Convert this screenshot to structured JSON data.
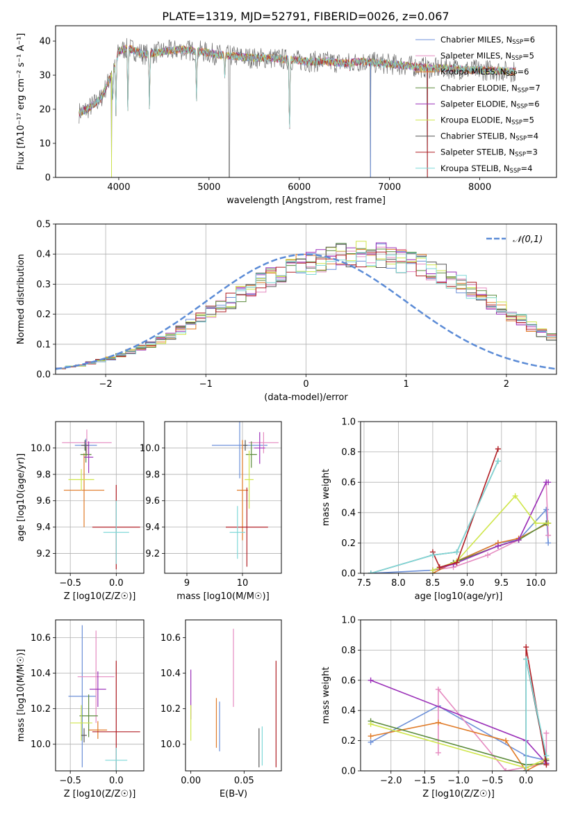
{
  "figure": {
    "title": "PLATE=1319, MJD=52791, FIBERID=0026, z=0.067"
  },
  "colors": {
    "chabrier_miles": "#6b8fd8",
    "salpeter_miles": "#e58ac0",
    "kroupa_miles": "#e07a26",
    "chabrier_elodie": "#5a8a3a",
    "salpeter_elodie": "#9a2fb8",
    "kroupa_elodie": "#cfe64a",
    "chabrier_stelib": "#555555",
    "salpeter_stelib": "#b01e24",
    "kroupa_stelib": "#7fd8d8",
    "gaussian": "#5b8bd6",
    "grid": "#b0b0b0"
  },
  "chart_data": [
    {
      "type": "line",
      "title": "PLATE=1319, MJD=52791, FIBERID=0026, z=0.067",
      "xlabel": "wavelength [Angstrom, rest frame]",
      "ylabel": "Flux [fλ10⁻¹⁷ erg cm⁻² s⁻¹ A⁻¹]",
      "xlim": [
        3300,
        8850
      ],
      "ylim": [
        0,
        44.5
      ],
      "xticks": [
        "4000",
        "5000",
        "6000",
        "7000",
        "8000"
      ],
      "yticks": [
        "0",
        "10",
        "20",
        "30",
        "40"
      ],
      "grid": false,
      "legend_position": "top-right",
      "legend": [
        "Chabrier MILES, NSSP=6",
        "Salpeter MILES, NSSP=5",
        "Kroupa MILES, NSSP=6",
        "Chabrier ELODIE, NSSP=7",
        "Salpeter ELODIE, NSSP=6",
        "Kroupa ELODIE, NSSP=5",
        "Chabrier STELIB, NSSP=4",
        "Salpeter STELIB, NSSP=3",
        "Kroupa STELIB, NSSP=4"
      ],
      "continuum": [
        [
          3560,
          19
        ],
        [
          3650,
          20
        ],
        [
          3800,
          23
        ],
        [
          3950,
          32
        ],
        [
          4000,
          37
        ],
        [
          4100,
          38
        ],
        [
          4300,
          36
        ],
        [
          4500,
          37
        ],
        [
          4700,
          37.5
        ],
        [
          4900,
          37
        ],
        [
          5100,
          36
        ],
        [
          5300,
          35.5
        ],
        [
          5500,
          35
        ],
        [
          5700,
          35
        ],
        [
          5900,
          34.5
        ],
        [
          6100,
          34
        ],
        [
          6300,
          34
        ],
        [
          6500,
          33.5
        ],
        [
          6700,
          34
        ],
        [
          6900,
          33.5
        ],
        [
          7100,
          33
        ],
        [
          7300,
          32.5
        ],
        [
          7500,
          32
        ],
        [
          7700,
          32
        ],
        [
          7900,
          31.5
        ],
        [
          8100,
          31.5
        ],
        [
          8400,
          31
        ]
      ],
      "absorption": [
        [
          3934,
          22
        ],
        [
          3968,
          18
        ],
        [
          4101,
          19
        ],
        [
          4340,
          20
        ],
        [
          4861,
          22
        ],
        [
          5175,
          29
        ],
        [
          5892,
          12
        ],
        [
          6563,
          31
        ]
      ],
      "dropouts": [
        [
          3920,
          0
        ],
        [
          5225,
          0
        ],
        [
          6790,
          0
        ],
        [
          7420,
          0
        ]
      ]
    },
    {
      "type": "line",
      "title": "",
      "xlabel": "(data-model)/error",
      "ylabel": "Normed distribution",
      "xlim": [
        -2.5,
        2.5
      ],
      "ylim": [
        0,
        0.5
      ],
      "xticks": [
        "−2",
        "−1",
        "0",
        "1",
        "2"
      ],
      "yticks": [
        "0.0",
        "0.1",
        "0.2",
        "0.3",
        "0.4",
        "0.5"
      ],
      "grid": true,
      "legend_position": "top-right",
      "legend": [
        "𝒩(0,1)"
      ],
      "bin_width": 0.1,
      "bin_start": -2.5,
      "histogram_envelope": [
        0.02,
        0.025,
        0.03,
        0.038,
        0.045,
        0.052,
        0.062,
        0.075,
        0.088,
        0.1,
        0.115,
        0.13,
        0.148,
        0.165,
        0.185,
        0.205,
        0.225,
        0.245,
        0.265,
        0.285,
        0.305,
        0.32,
        0.335,
        0.35,
        0.36,
        0.37,
        0.38,
        0.39,
        0.395,
        0.4,
        0.4,
        0.4,
        0.395,
        0.39,
        0.38,
        0.37,
        0.36,
        0.345,
        0.33,
        0.315,
        0.3,
        0.28,
        0.26,
        0.24,
        0.22,
        0.2,
        0.18,
        0.16,
        0.14,
        0.123,
        0.107,
        0.093,
        0.08,
        0.068,
        0.058,
        0.05,
        0.043,
        0.037,
        0.032,
        0.028
      ]
    },
    {
      "type": "scatter",
      "title": "",
      "xlabel": "Z [log10(Z/Z☉)]",
      "ylabel": "age  [log10(age/yr)]",
      "xlim": [
        -0.66,
        0.3
      ],
      "ylim": [
        9.05,
        10.2
      ],
      "xticks": [
        "−0.5",
        "0.0"
      ],
      "yticks": [
        "9.2",
        "9.4",
        "9.6",
        "9.8",
        "10.0"
      ],
      "grid": true,
      "points": [
        {
          "x": -0.33,
          "y": 10.02,
          "xerr": 0.12,
          "yerr": 0.05,
          "c": "chabrier_miles"
        },
        {
          "x": -0.32,
          "y": 10.04,
          "xerr": 0.27,
          "yerr": 0.1,
          "c": "salpeter_miles"
        },
        {
          "x": -0.35,
          "y": 9.68,
          "xerr": 0.22,
          "yerr": 0.28,
          "c": "kroupa_miles"
        },
        {
          "x": -0.33,
          "y": 9.95,
          "xerr": 0.06,
          "yerr": 0.06,
          "c": "chabrier_elodie"
        },
        {
          "x": -0.3,
          "y": 9.93,
          "xerr": 0.05,
          "yerr": 0.12,
          "c": "salpeter_elodie"
        },
        {
          "x": -0.38,
          "y": 9.76,
          "xerr": 0.14,
          "yerr": 0.08,
          "c": "kroupa_elodie"
        },
        {
          "x": -0.34,
          "y": 10.02,
          "xerr": 0.04,
          "yerr": 0.04,
          "c": "chabrier_stelib"
        },
        {
          "x": 0.0,
          "y": 9.4,
          "xerr": 0.26,
          "yerr": 0.32,
          "c": "salpeter_stelib"
        },
        {
          "x": 0.0,
          "y": 9.36,
          "xerr": 0.14,
          "yerr": 0.24,
          "c": "kroupa_stelib"
        }
      ]
    },
    {
      "type": "scatter",
      "title": "",
      "xlabel": "mass [log10(M/M☉)]",
      "ylabel": "",
      "xlim": [
        8.6,
        10.7
      ],
      "ylim": [
        9.05,
        10.2
      ],
      "xticks": [
        "9",
        "10"
      ],
      "yticks": [
        "9.2",
        "9.4",
        "9.6",
        "9.8",
        "10.0"
      ],
      "grid": true,
      "points": [
        {
          "x": 9.95,
          "y": 10.02,
          "xerr": 0.5,
          "yerr": 0.25,
          "c": "chabrier_miles"
        },
        {
          "x": 10.38,
          "y": 10.04,
          "xerr": 0.27,
          "yerr": 0.08,
          "c": "salpeter_miles"
        },
        {
          "x": 10.0,
          "y": 9.68,
          "xerr": 0.1,
          "yerr": 0.38,
          "c": "kroupa_miles"
        },
        {
          "x": 10.16,
          "y": 9.95,
          "xerr": 0.1,
          "yerr": 0.1,
          "c": "chabrier_elodie"
        },
        {
          "x": 10.31,
          "y": 10.0,
          "xerr": 0.1,
          "yerr": 0.12,
          "c": "salpeter_elodie"
        },
        {
          "x": 10.12,
          "y": 9.76,
          "xerr": 0.08,
          "yerr": 0.22,
          "c": "kroupa_elodie"
        },
        {
          "x": 10.05,
          "y": 10.02,
          "xerr": 0.04,
          "yerr": 0.04,
          "c": "chabrier_stelib"
        },
        {
          "x": 10.08,
          "y": 9.4,
          "xerr": 0.38,
          "yerr": 0.3,
          "c": "salpeter_stelib"
        },
        {
          "x": 9.91,
          "y": 9.36,
          "xerr": 0.14,
          "yerr": 0.2,
          "c": "kroupa_stelib"
        }
      ]
    },
    {
      "type": "line",
      "title": "",
      "xlabel": "age  [log10(age/yr)]",
      "ylabel": "mass weight",
      "xlim": [
        7.45,
        10.3
      ],
      "ylim": [
        0,
        1.0
      ],
      "xticks": [
        "7.5",
        "8.0",
        "8.5",
        "9.0",
        "9.5",
        "10.0"
      ],
      "yticks": [
        "0.0",
        "0.2",
        "0.4",
        "0.6",
        "0.8",
        "1.0"
      ],
      "grid": true,
      "series": [
        {
          "c": "chabrier_miles",
          "x": [
            7.6,
            8.5,
            8.8,
            9.45,
            9.75,
            10.15,
            10.18
          ],
          "y": [
            0.0,
            0.02,
            0.07,
            0.2,
            0.22,
            0.42,
            0.2
          ]
        },
        {
          "c": "salpeter_miles",
          "x": [
            8.5,
            8.8,
            9.3,
            9.75,
            10.15,
            10.18
          ],
          "y": [
            0.02,
            0.04,
            0.12,
            0.22,
            0.6,
            0.25
          ]
        },
        {
          "c": "kroupa_miles",
          "x": [
            8.5,
            8.85,
            9.45,
            9.75,
            10.18
          ],
          "y": [
            0.0,
            0.08,
            0.2,
            0.23,
            0.33
          ]
        },
        {
          "c": "chabrier_elodie",
          "x": [
            8.5,
            8.8,
            9.45,
            9.75,
            10.15,
            10.18
          ],
          "y": [
            0.02,
            0.07,
            0.18,
            0.22,
            0.33,
            0.33
          ]
        },
        {
          "c": "salpeter_elodie",
          "x": [
            8.5,
            8.8,
            9.45,
            9.75,
            10.15,
            10.18
          ],
          "y": [
            0.02,
            0.06,
            0.18,
            0.22,
            0.6,
            0.6
          ]
        },
        {
          "c": "kroupa_elodie",
          "x": [
            8.5,
            8.85,
            9.7,
            10.0,
            10.18
          ],
          "y": [
            0.02,
            0.08,
            0.51,
            0.33,
            0.33
          ]
        },
        {
          "c": "chabrier_stelib",
          "x": [
            7.6,
            8.5,
            8.85,
            9.45
          ],
          "y": [
            0.0,
            0.12,
            0.14,
            0.74
          ]
        },
        {
          "c": "salpeter_stelib",
          "x": [
            8.5,
            8.6,
            8.85,
            9.45
          ],
          "y": [
            0.14,
            0.04,
            0.07,
            0.82
          ]
        },
        {
          "c": "kroupa_stelib",
          "x": [
            7.6,
            8.5,
            8.85,
            9.45
          ],
          "y": [
            0.0,
            0.12,
            0.14,
            0.74
          ]
        }
      ]
    },
    {
      "type": "scatter",
      "title": "",
      "xlabel": "Z [log10(Z/Z☉)]",
      "ylabel": "mass [log10(M/M☉)]",
      "xlim": [
        -0.66,
        0.3
      ],
      "ylim": [
        9.85,
        10.7
      ],
      "xticks": [
        "−0.5",
        "0.0"
      ],
      "yticks": [
        "10.0",
        "10.2",
        "10.4",
        "10.6"
      ],
      "grid": true,
      "points": [
        {
          "x": -0.37,
          "y": 10.27,
          "xerr": 0.15,
          "yerr": 0.4,
          "c": "chabrier_miles"
        },
        {
          "x": -0.22,
          "y": 10.38,
          "xerr": 0.2,
          "yerr": 0.26,
          "c": "salpeter_miles"
        },
        {
          "x": -0.2,
          "y": 10.08,
          "xerr": 0.1,
          "yerr": 0.05,
          "c": "kroupa_miles"
        },
        {
          "x": -0.3,
          "y": 10.16,
          "xerr": 0.1,
          "yerr": 0.12,
          "c": "chabrier_elodie"
        },
        {
          "x": -0.2,
          "y": 10.31,
          "xerr": 0.09,
          "yerr": 0.1,
          "c": "salpeter_elodie"
        },
        {
          "x": -0.38,
          "y": 10.12,
          "xerr": 0.12,
          "yerr": 0.1,
          "c": "kroupa_elodie"
        },
        {
          "x": -0.35,
          "y": 10.05,
          "xerr": 0.03,
          "yerr": 0.04,
          "c": "chabrier_stelib"
        },
        {
          "x": 0.0,
          "y": 10.07,
          "xerr": 0.26,
          "yerr": 0.4,
          "c": "salpeter_stelib"
        },
        {
          "x": 0.0,
          "y": 9.91,
          "xerr": 0.12,
          "yerr": 0.07,
          "c": "kroupa_stelib"
        }
      ]
    },
    {
      "type": "scatter",
      "title": "",
      "xlabel": "E(B-V)",
      "ylabel": "",
      "xlim": [
        -0.005,
        0.085
      ],
      "ylim": [
        9.85,
        10.7
      ],
      "xticks": [
        "0.00",
        "0.05"
      ],
      "yticks": [
        "10.0",
        "10.2",
        "10.4",
        "10.6"
      ],
      "grid": false,
      "points": [
        {
          "x": 0.0,
          "y": 10.28,
          "xerr": 0,
          "yerr": 0.14,
          "c": "salpeter_elodie"
        },
        {
          "x": 0.0,
          "y": 10.12,
          "xerr": 0,
          "yerr": 0.1,
          "c": "kroupa_elodie"
        },
        {
          "x": 0.024,
          "y": 10.12,
          "xerr": 0,
          "yerr": 0.14,
          "c": "kroupa_miles"
        },
        {
          "x": 0.027,
          "y": 10.1,
          "xerr": 0,
          "yerr": 0.14,
          "c": "chabrier_miles"
        },
        {
          "x": 0.04,
          "y": 10.43,
          "xerr": 0,
          "yerr": 0.22,
          "c": "salpeter_miles"
        },
        {
          "x": 0.064,
          "y": 9.98,
          "xerr": 0,
          "yerr": 0.11,
          "c": "chabrier_stelib"
        },
        {
          "x": 0.067,
          "y": 9.99,
          "xerr": 0,
          "yerr": 0.11,
          "c": "kroupa_stelib"
        },
        {
          "x": 0.08,
          "y": 10.17,
          "xerr": 0,
          "yerr": 0.3,
          "c": "salpeter_stelib"
        }
      ]
    },
    {
      "type": "line",
      "title": "",
      "xlabel": "Z [log10(Z/Z☉)]",
      "ylabel": "mass weight",
      "xlim": [
        -2.45,
        0.45
      ],
      "ylim": [
        0,
        1.0
      ],
      "xticks": [
        "−2.0",
        "−1.5",
        "−1.0",
        "−0.5",
        "0.0"
      ],
      "yticks": [
        "0.0",
        "0.2",
        "0.4",
        "0.6",
        "0.8",
        "1.0"
      ],
      "grid": true,
      "series": [
        {
          "c": "chabrier_miles",
          "x": [
            -2.3,
            -1.3,
            0.0,
            0.3
          ],
          "y": [
            0.19,
            0.43,
            0.1,
            0.07
          ]
        },
        {
          "c": "salpeter_miles",
          "x": [
            -1.3,
            -1.3,
            -0.3,
            0.3,
            0.3
          ],
          "y": [
            0.12,
            0.54,
            0.0,
            0.05,
            0.25
          ]
        },
        {
          "c": "kroupa_miles",
          "x": [
            -2.3,
            -1.3,
            -0.3,
            0.0,
            0.3
          ],
          "y": [
            0.23,
            0.32,
            0.2,
            0.0,
            0.07
          ]
        },
        {
          "c": "chabrier_elodie",
          "x": [
            -2.3,
            0.0,
            0.3
          ],
          "y": [
            0.33,
            0.04,
            0.05
          ]
        },
        {
          "c": "salpeter_elodie",
          "x": [
            -2.3,
            0.0,
            0.3
          ],
          "y": [
            0.6,
            0.2,
            0.05
          ]
        },
        {
          "c": "kroupa_elodie",
          "x": [
            -2.3,
            0.0,
            0.3
          ],
          "y": [
            0.31,
            0.02,
            0.08
          ]
        },
        {
          "c": "chabrier_stelib",
          "x": [
            0.0,
            0.0,
            0.3
          ],
          "y": [
            0.0,
            0.74,
            0.07
          ]
        },
        {
          "c": "salpeter_stelib",
          "x": [
            0.0,
            0.0,
            0.3
          ],
          "y": [
            0.0,
            0.82,
            0.04
          ]
        },
        {
          "c": "kroupa_stelib",
          "x": [
            0.0,
            0.0,
            0.3
          ],
          "y": [
            0.0,
            0.74,
            0.1
          ]
        }
      ]
    }
  ]
}
